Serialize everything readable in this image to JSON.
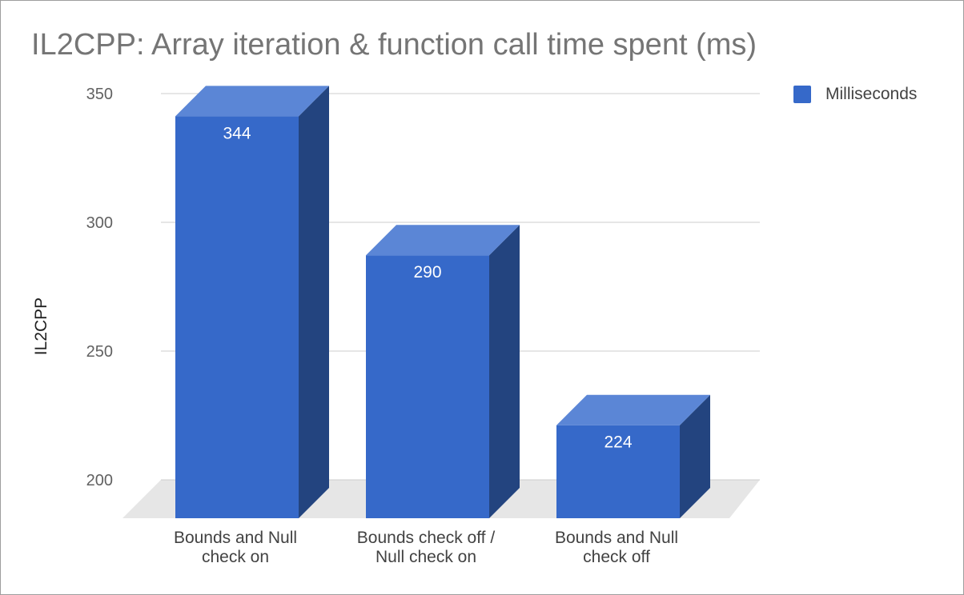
{
  "chart_data": {
    "type": "bar",
    "title": "IL2CPP: Array iteration & function call time spent (ms)",
    "ylabel": "IL2CPP",
    "xlabel": "",
    "categories": [
      [
        "Bounds and Null",
        "check on"
      ],
      [
        "Bounds check off /",
        "Null check on"
      ],
      [
        "Bounds and Null",
        "check off"
      ]
    ],
    "series": [
      {
        "name": "Milliseconds",
        "values": [
          344,
          290,
          224
        ],
        "color": "#3669c9"
      }
    ],
    "data_labels": [
      "344",
      "290",
      "224"
    ],
    "yticks": [
      200,
      250,
      300,
      350
    ],
    "ytick_labels": [
      "200",
      "250",
      "300",
      "350"
    ],
    "ylim": [
      200,
      350
    ],
    "grid": true,
    "legend_position": "top-right",
    "style": "3d"
  }
}
